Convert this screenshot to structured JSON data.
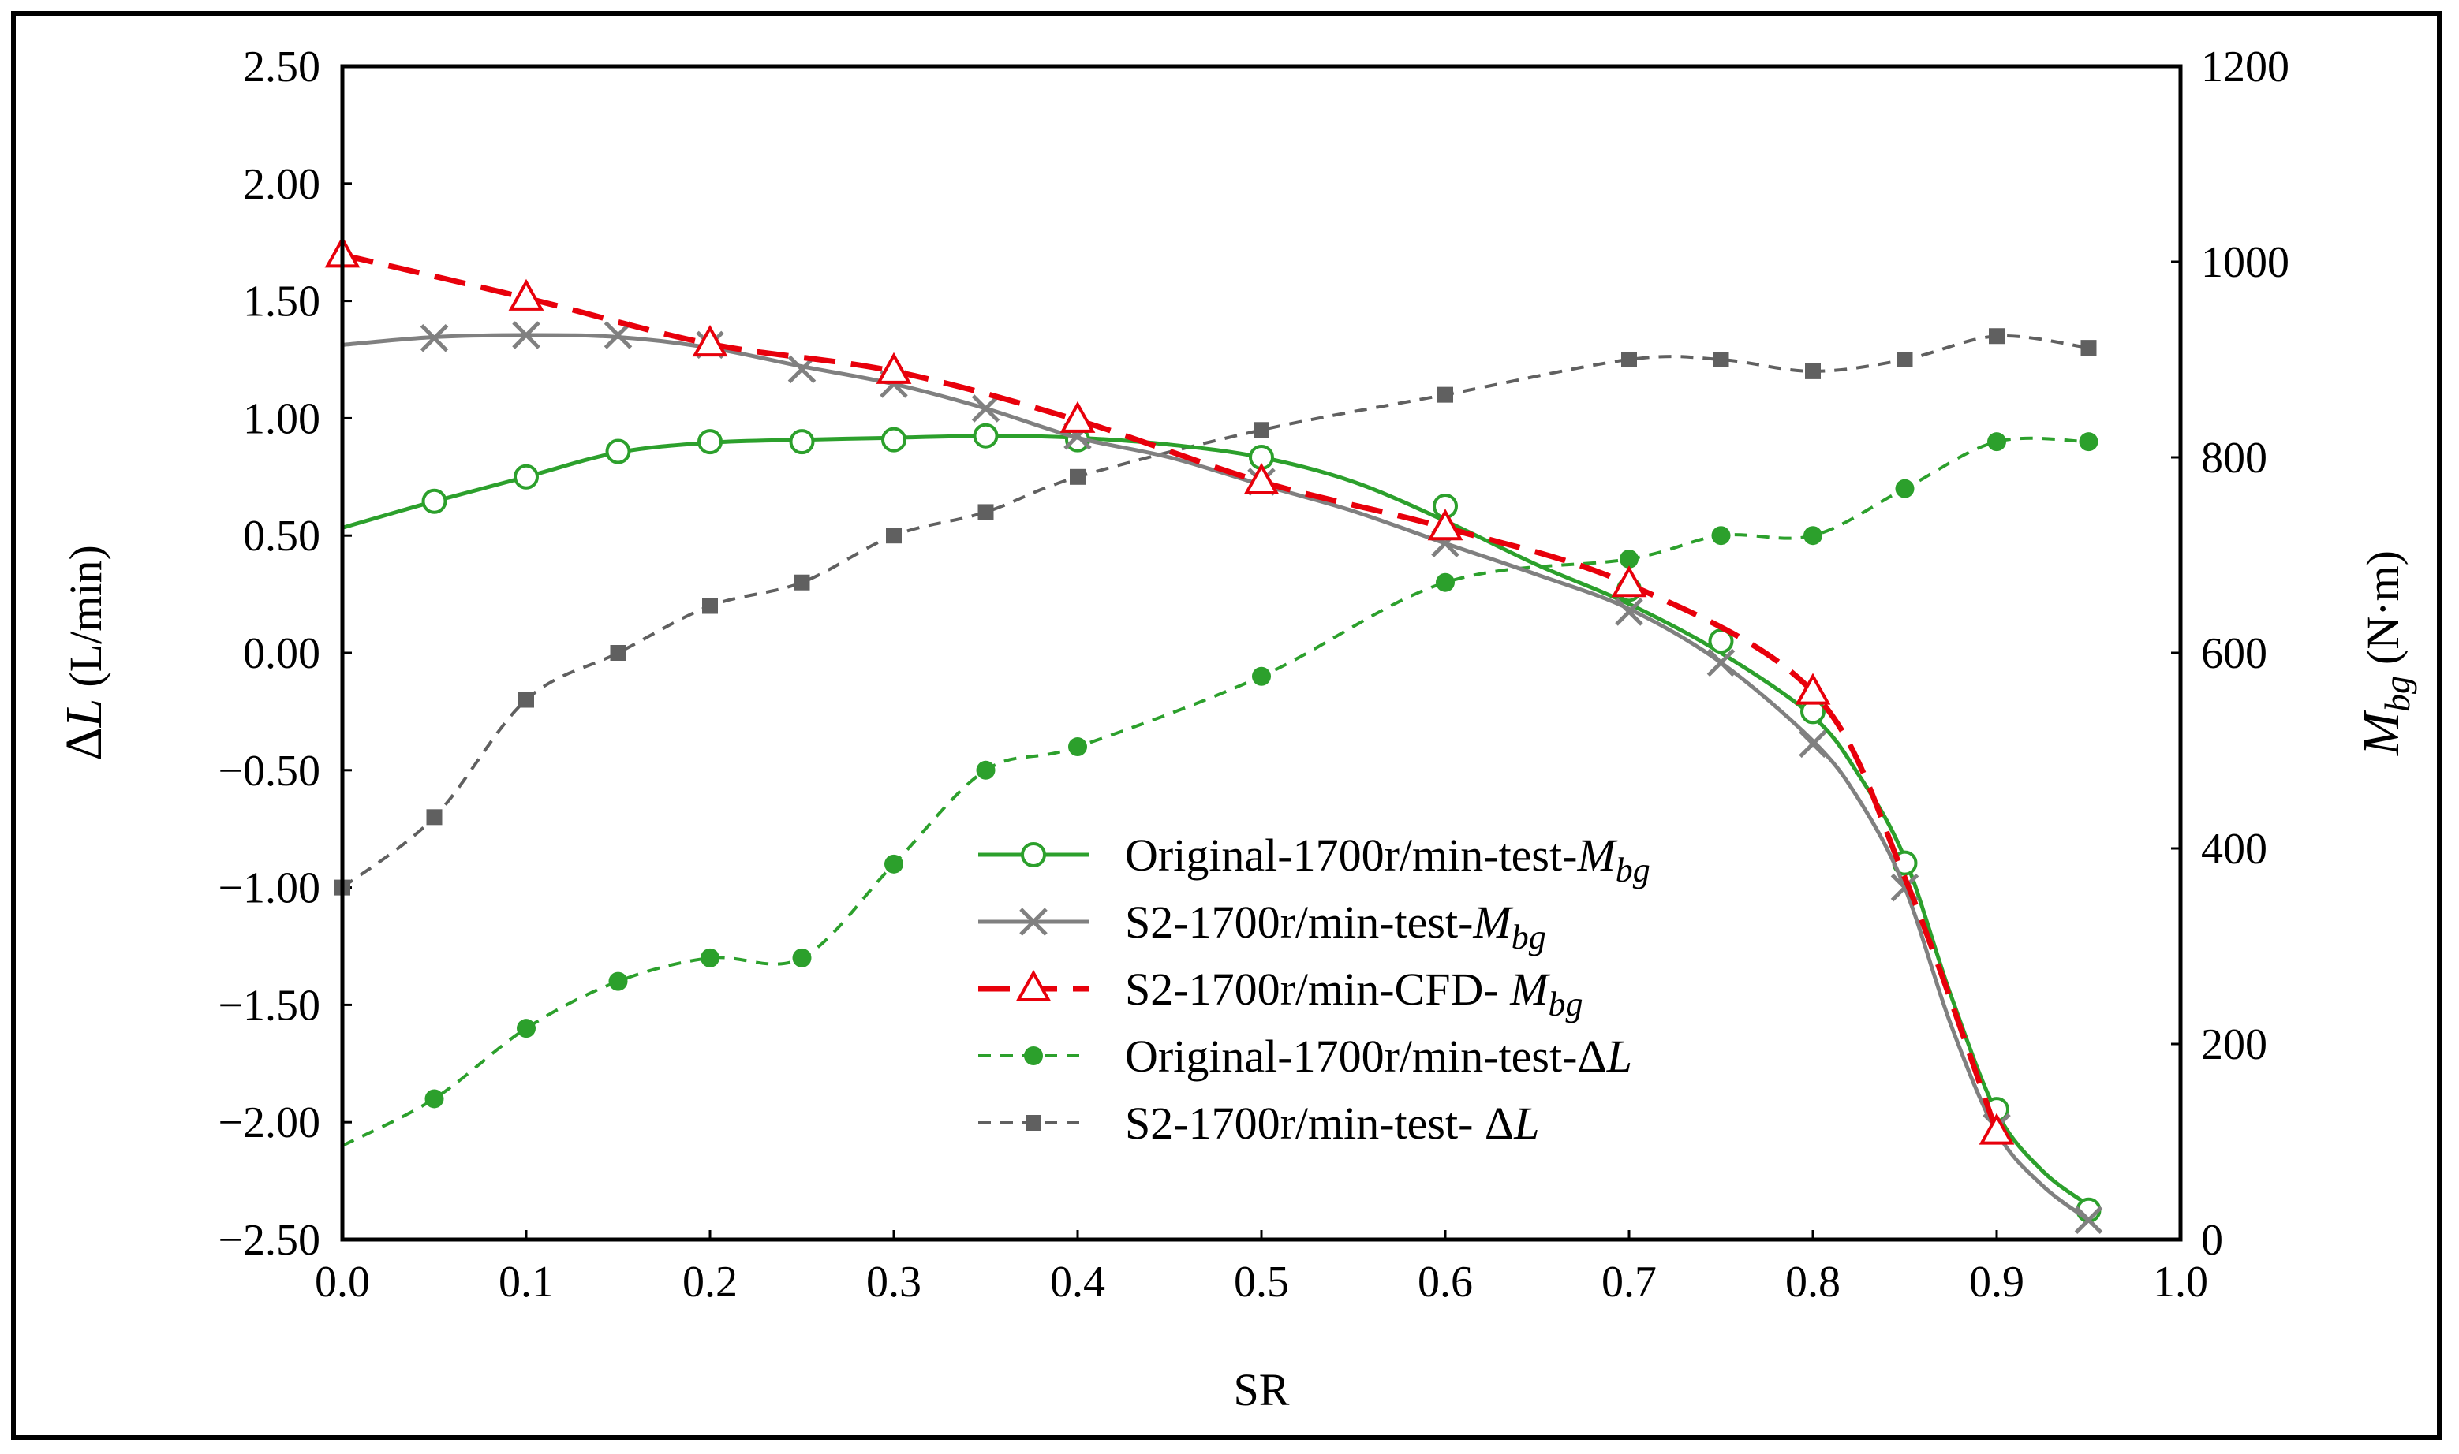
{
  "chart_data": {
    "type": "line",
    "xlabel": "SR",
    "ylabel": "ΔL",
    "ylabel_unit": "(L/min)",
    "ylabel_right": "M",
    "ylabel_right_sub": "bg",
    "ylabel_right_unit": "(N·m)",
    "xlim": [
      0.0,
      1.0
    ],
    "ylim_left": [
      -2.5,
      2.5
    ],
    "ylim_right": [
      0,
      1200
    ],
    "x_ticks": [
      "0.0",
      "0.1",
      "0.2",
      "0.3",
      "0.4",
      "0.5",
      "0.6",
      "0.7",
      "0.8",
      "0.9",
      "1.0"
    ],
    "y_ticks_left": [
      "2.50",
      "2.00",
      "1.50",
      "1.00",
      "0.50",
      "0.00",
      "−0.50",
      "−1.00",
      "−1.50",
      "−2.00",
      "−2.50"
    ],
    "y_ticks_right": [
      "1200",
      "1000",
      "800",
      "600",
      "400",
      "200",
      "0"
    ],
    "colors": {
      "green": "#2ca02c",
      "gray": "#808080",
      "red": "#e8000b",
      "darkgray": "#606060"
    },
    "series": [
      {
        "name": "Original-1700r/min-test-",
        "name_var": "M",
        "name_sub": "bg",
        "axis": "right",
        "color": "#2ca02c",
        "dash": "none",
        "marker": "circle",
        "curve": {
          "x": [
            0.0,
            0.05,
            0.1,
            0.15,
            0.2,
            0.25,
            0.3,
            0.35,
            0.4,
            0.45,
            0.5,
            0.55,
            0.6,
            0.65,
            0.7,
            0.75,
            0.8,
            0.825,
            0.85,
            0.875,
            0.9,
            0.925,
            0.95
          ],
          "y": [
            728,
            755,
            780,
            805,
            815,
            818,
            820,
            822,
            820,
            813,
            800,
            775,
            735,
            690,
            650,
            600,
            535,
            475,
            390,
            250,
            130,
            70,
            35
          ]
        },
        "markers": {
          "x": [
            0.05,
            0.1,
            0.15,
            0.2,
            0.25,
            0.3,
            0.35,
            0.4,
            0.5,
            0.6,
            0.7,
            0.75,
            0.8,
            0.85,
            0.9,
            0.95
          ],
          "y": [
            755,
            780,
            806,
            816,
            816,
            818,
            822,
            818,
            800,
            750,
            665,
            612,
            540,
            385,
            133,
            30
          ]
        }
      },
      {
        "name": "S2-1700r/min-test-",
        "name_var": "M",
        "name_sub": "bg",
        "axis": "right",
        "color": "#808080",
        "dash": "none",
        "marker": "x",
        "curve": {
          "x": [
            0.0,
            0.05,
            0.1,
            0.15,
            0.2,
            0.25,
            0.3,
            0.35,
            0.4,
            0.45,
            0.5,
            0.55,
            0.6,
            0.65,
            0.7,
            0.75,
            0.8,
            0.825,
            0.85,
            0.875,
            0.9,
            0.925,
            0.95
          ],
          "y": [
            915,
            923,
            925,
            923,
            912,
            893,
            875,
            850,
            820,
            800,
            772,
            745,
            712,
            680,
            645,
            590,
            510,
            450,
            360,
            220,
            110,
            55,
            20
          ]
        },
        "markers": {
          "x": [
            0.05,
            0.1,
            0.15,
            0.2,
            0.25,
            0.3,
            0.35,
            0.4,
            0.5,
            0.6,
            0.7,
            0.75,
            0.8,
            0.85,
            0.9,
            0.95
          ],
          "y": [
            922,
            925,
            925,
            915,
            890,
            875,
            850,
            822,
            775,
            712,
            642,
            590,
            507,
            360,
            115,
            20
          ]
        }
      },
      {
        "name": "S2-1700r/min-CFD- ",
        "name_var": "M",
        "name_sub": "bg",
        "axis": "right",
        "color": "#e8000b",
        "dash": "long",
        "marker": "triangle",
        "curve": {
          "x": [
            0.0,
            0.1,
            0.2,
            0.3,
            0.4,
            0.5,
            0.6,
            0.7,
            0.8,
            0.85,
            0.9
          ],
          "y": [
            1007,
            963,
            916,
            888,
            838,
            775,
            728,
            670,
            560,
            370,
            110
          ]
        },
        "markers": {
          "x": [
            0.0,
            0.1,
            0.2,
            0.3,
            0.4,
            0.5,
            0.6,
            0.7,
            0.8,
            0.9
          ],
          "y": [
            1007,
            963,
            916,
            888,
            838,
            775,
            728,
            670,
            560,
            110
          ]
        }
      },
      {
        "name": "Original-1700r/min-test-",
        "name_var": "ΔL",
        "name_sub": "",
        "axis": "left",
        "color": "#2ca02c",
        "dash": "short",
        "marker": "dot",
        "curve": {
          "x": [
            0.0,
            0.05,
            0.1,
            0.15,
            0.2,
            0.25,
            0.3,
            0.35,
            0.4,
            0.5,
            0.6,
            0.7,
            0.75,
            0.8,
            0.85,
            0.9,
            0.95
          ],
          "y": [
            -2.1,
            -1.9,
            -1.6,
            -1.4,
            -1.3,
            -1.3,
            -0.9,
            -0.5,
            -0.4,
            -0.1,
            0.3,
            0.4,
            0.5,
            0.5,
            0.7,
            0.9,
            0.9
          ]
        },
        "markers": {
          "x": [
            0.05,
            0.1,
            0.15,
            0.2,
            0.25,
            0.3,
            0.35,
            0.4,
            0.5,
            0.6,
            0.7,
            0.75,
            0.8,
            0.85,
            0.9,
            0.95
          ],
          "y": [
            -1.9,
            -1.6,
            -1.4,
            -1.3,
            -1.3,
            -0.9,
            -0.5,
            -0.4,
            -0.1,
            0.3,
            0.4,
            0.5,
            0.5,
            0.7,
            0.9,
            0.9
          ]
        }
      },
      {
        "name": "S2-1700r/min-test- ",
        "name_var": "ΔL",
        "name_sub": "",
        "axis": "left",
        "color": "#606060",
        "dash": "short",
        "marker": "square",
        "curve": {
          "x": [
            0.0,
            0.05,
            0.1,
            0.15,
            0.2,
            0.25,
            0.3,
            0.35,
            0.4,
            0.5,
            0.6,
            0.7,
            0.75,
            0.8,
            0.85,
            0.9,
            0.95
          ],
          "y": [
            -1.0,
            -0.7,
            -0.2,
            0.0,
            0.2,
            0.3,
            0.5,
            0.6,
            0.75,
            0.95,
            1.1,
            1.25,
            1.25,
            1.2,
            1.25,
            1.35,
            1.3
          ]
        },
        "markers": {
          "x": [
            0.0,
            0.05,
            0.1,
            0.15,
            0.2,
            0.25,
            0.3,
            0.35,
            0.4,
            0.5,
            0.6,
            0.7,
            0.75,
            0.8,
            0.85,
            0.9,
            0.95
          ],
          "y": [
            -1.0,
            -0.7,
            -0.2,
            0.0,
            0.2,
            0.3,
            0.5,
            0.6,
            0.75,
            0.95,
            1.1,
            1.25,
            1.25,
            1.2,
            1.25,
            1.35,
            1.3
          ]
        }
      }
    ]
  }
}
